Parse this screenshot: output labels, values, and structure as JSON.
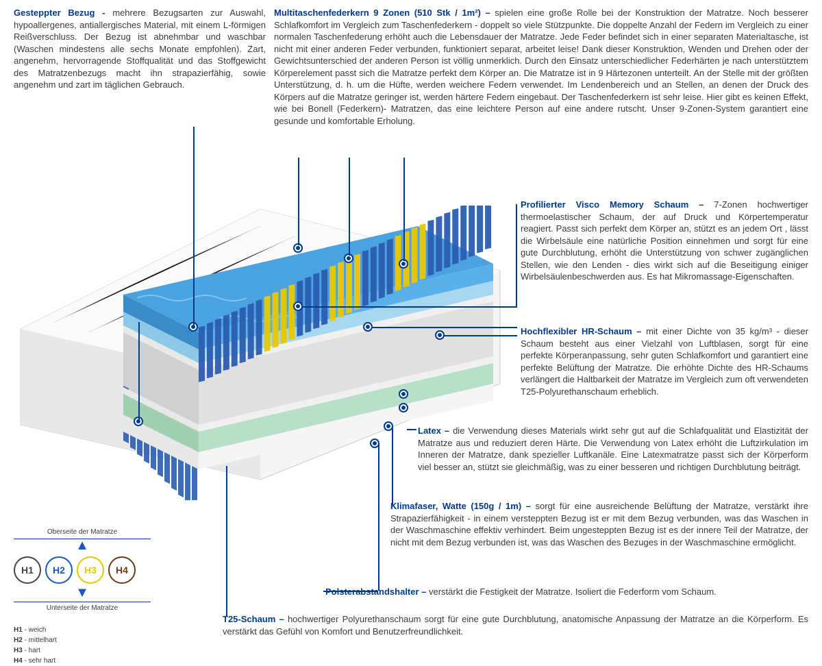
{
  "sections": {
    "bezug": {
      "title": "Gesteppter Bezug - ",
      "body": "mehrere Bezugsarten zur Auswahl, hypoallergenes, antiallergisches Material, mit einem L-förmigen Reißverschluss. Der Bezug ist abnehmbar und waschbar (Waschen mindestens alle sechs Monate empfohlen). Zart, angenehm, hervorragende Stoffqualität und das Stoffgewicht des Matratzenbezugs macht ihn strapazierfähig, sowie angenehm und zart im täglichen Gebrauch."
    },
    "federkern": {
      "title": "Multitaschenfederkern 9 Zonen (510 Stk / 1m²) – ",
      "body": "spielen eine große Rolle bei der Konstruktion der Matratze. Noch besserer Schlafkomfort im Vergleich zum Taschenfederkern - doppelt so viele Stützpunkte. Die doppelte Anzahl der Federn im Vergleich zu einer normalen Taschenfederung erhöht auch die Lebensdauer der Matratze. Jede Feder befindet sich in einer separaten Materialtasche, ist nicht mit einer anderen Feder verbunden, funktioniert separat, arbeitet leise! Dank dieser Konstruktion, Wenden und Drehen oder der Gewichtsunterschied der anderen Person ist völlig unmerklich. Durch den Einsatz unterschiedlicher Federhärten je nach unterstütztem Körperelement passt sich die Matratze perfekt dem Körper an. Die Matratze ist in 9 Härtezonen unterteilt. An der Stelle mit der größten Unterstützung, d. h. um die Hüfte, werden weichere Federn verwendet. Im Lendenbereich und an Stellen, an denen der Druck des Körpers auf die Matratze geringer ist, werden härtere Federn eingebaut. Der Taschenfederkern ist sehr leise. Hier gibt es keinen Effekt, wie bei Bonell (Federkern)- Matratzen, das eine leichtere Person auf eine andere rutscht. Unser 9-Zonen-System garantiert eine gesunde und komfortable Erholung."
    },
    "visco": {
      "title": "Profilierter Visco Memory Schaum – ",
      "body": "7-Zonen hochwertiger thermoelastischer Schaum, der auf Druck und Körpertemperatur reagiert. Passt sich perfekt dem Körper an, stützt es an jedem Ort , lässt die Wirbelsäule eine natürliche Position einnehmen und sorgt für eine gute Durchblutung, erhöht die Unterstützung von schwer zugänglichen Stellen, wie den Lenden - dies wirkt sich auf die Beseitigung einiger Wirbelsäulenbeschwerden aus. Es hat Mikromassage-Eigenschaften."
    },
    "hr": {
      "title": "Hochflexibler HR-Schaum – ",
      "body": "mit einer Dichte von 35 kg/m³ - dieser Schaum besteht aus einer Vielzahl von Luftblasen, sorgt für eine perfekte Körperanpassung, sehr guten Schlafkomfort und garantiert eine perfekte Belüftung der Matratze. Die erhöhte Dichte des HR-Schaums verlängert die Haltbarkeit der Matratze im Vergleich zum oft verwendeten T25-Polyurethanschaum erheblich."
    },
    "latex": {
      "title": "Latex – ",
      "body": "die Verwendung dieses Materials wirkt sehr gut auf die Schlafqualität und Elastizität der Matratze aus und reduziert deren Härte. Die Verwendung von Latex erhöht die Luftzirkulation im Inneren der Matratze, dank spezieller Luftkanäle. Eine Latexmatratze passt sich der Körperform viel besser an, stützt sie gleichmäßig, was zu einer besseren und richtigen Durchblutung beiträgt."
    },
    "klima": {
      "title": "Klimafaser, Watte (150g / 1m) – ",
      "body": "sorgt für eine ausreichende Belüftung der Matratze, verstärkt ihre Strapazierfähigkeit - in einem versteppten Bezug ist er mit dem Bezug verbunden, was das Waschen in der Waschmaschine effektiv verhindert. Beim ungesteppten Bezug ist es der innere Teil der Matratze, der nicht mit dem Bezug verbunden ist, was das Waschen des Bezuges in der Waschmaschine ermöglicht."
    },
    "polster": {
      "title": "Polsterabstandshalter – ",
      "body": "verstärkt die Festigkeit der Matratze. Isoliert die Federform vom Schaum."
    },
    "t25": {
      "title": "T25-Schaum – ",
      "body": "hochwertiger Polyurethanschaum sorgt für eine gute Durchblutung, anatomische Anpassung der Matratze an die Körperform. Es verstärkt das Gefühl von Komfort und Benutzerfreundlichkeit."
    }
  },
  "legend": {
    "top": "Oberseite der Matratze",
    "bottom": "Unterseite der Matratze",
    "items": [
      {
        "label": "H1",
        "color": "#444444",
        "desc": "weich"
      },
      {
        "label": "H2",
        "color": "#1558c0",
        "desc": "mittelhart"
      },
      {
        "label": "H3",
        "color": "#e8c800",
        "desc": "hart"
      },
      {
        "label": "H4",
        "color": "#6b3a1a",
        "desc": "sehr hart"
      }
    ]
  },
  "colors": {
    "accent": "#003a8c",
    "foam_blue": "#4aa3e0",
    "foam_lightblue": "#a8d8f0",
    "spring_blue": "#2a5db0",
    "spring_yellow": "#e8c800",
    "foam_green": "#b8e0c8",
    "foam_white": "#f0f0f0",
    "cover": "#f5f5f5"
  }
}
